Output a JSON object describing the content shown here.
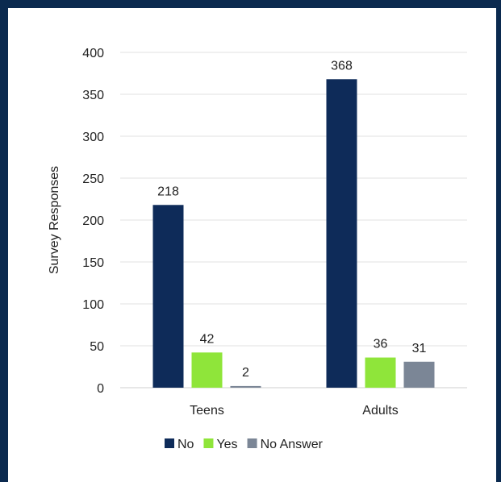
{
  "chart_data": {
    "type": "bar",
    "title": "",
    "xlabel": "",
    "ylabel": "Survey Responses",
    "categories": [
      "Teens",
      "Adults"
    ],
    "series": [
      {
        "name": "No",
        "values": [
          218,
          368
        ],
        "color": "#0e2b59"
      },
      {
        "name": "Yes",
        "values": [
          42,
          36
        ],
        "color": "#8fe53a"
      },
      {
        "name": "No Answer",
        "values": [
          2,
          31
        ],
        "color": "#7b8696"
      }
    ],
    "ylim": [
      0,
      400
    ],
    "yticks": [
      0,
      50,
      100,
      150,
      200,
      250,
      300,
      350,
      400
    ],
    "grid": true,
    "legend": "bottom"
  }
}
